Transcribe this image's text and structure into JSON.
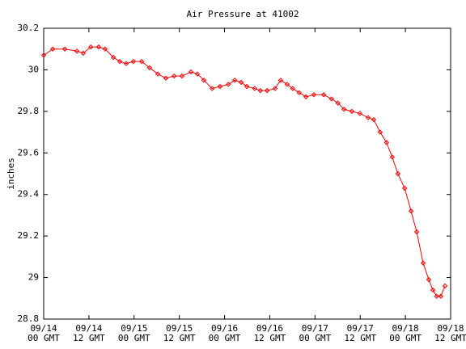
{
  "chart_data": {
    "type": "line",
    "title": "Air Pressure at 41002",
    "y_label": "inches",
    "x": [
      0,
      2.4,
      5.6,
      8.8,
      10.5,
      12.5,
      14.6,
      16.3,
      18.5,
      20.2,
      21.9,
      23.8,
      26.0,
      28.1,
      30.3,
      32.4,
      34.6,
      36.7,
      39.1,
      40.8,
      42.5,
      44.7,
      46.8,
      49.0,
      50.7,
      52.4,
      53.9,
      56.0,
      57.5,
      59.3,
      61.4,
      62.9,
      64.6,
      66.1,
      67.8,
      69.6,
      71.7,
      74.3,
      76.4,
      78.1,
      79.7,
      81.8,
      83.9,
      86.1,
      87.6,
      89.3,
      91.0,
      92.5,
      94.0,
      95.8,
      97.5,
      99.0,
      100.7,
      102.2,
      103.3,
      104.3,
      105.4,
      106.5
    ],
    "series": [
      {
        "name": "Air Pressure",
        "color": "#ff0000",
        "values": [
          30.07,
          30.1,
          30.1,
          30.09,
          30.08,
          30.11,
          30.11,
          30.1,
          30.06,
          30.04,
          30.03,
          30.04,
          30.04,
          30.01,
          29.98,
          29.96,
          29.97,
          29.97,
          29.99,
          29.98,
          29.95,
          29.91,
          29.92,
          29.93,
          29.95,
          29.94,
          29.92,
          29.91,
          29.9,
          29.9,
          29.91,
          29.95,
          29.93,
          29.91,
          29.89,
          29.87,
          29.88,
          29.88,
          29.86,
          29.84,
          29.81,
          29.8,
          29.79,
          29.77,
          29.76,
          29.7,
          29.65,
          29.58,
          29.5,
          29.43,
          29.32,
          29.22,
          29.07,
          28.99,
          28.94,
          28.91,
          28.91,
          28.96
        ]
      }
    ],
    "xlim": [
      0,
      108
    ],
    "xticks": [
      {
        "value": 0,
        "label": "09/14\n00 GMT"
      },
      {
        "value": 12,
        "label": "09/14\n12 GMT"
      },
      {
        "value": 24,
        "label": "09/15\n00 GMT"
      },
      {
        "value": 36,
        "label": "09/15\n12 GMT"
      },
      {
        "value": 48,
        "label": "09/16\n00 GMT"
      },
      {
        "value": 60,
        "label": "09/16\n12 GMT"
      },
      {
        "value": 72,
        "label": "09/17\n00 GMT"
      },
      {
        "value": 84,
        "label": "09/17\n12 GMT"
      },
      {
        "value": 96,
        "label": "09/18\n00 GMT"
      },
      {
        "value": 108,
        "label": "09/18\n12 GMT"
      }
    ],
    "ylim": [
      28.8,
      30.2
    ],
    "yticks": [
      28.8,
      29,
      29.2,
      29.4,
      29.6,
      29.8,
      30,
      30.2
    ],
    "grid": false
  }
}
